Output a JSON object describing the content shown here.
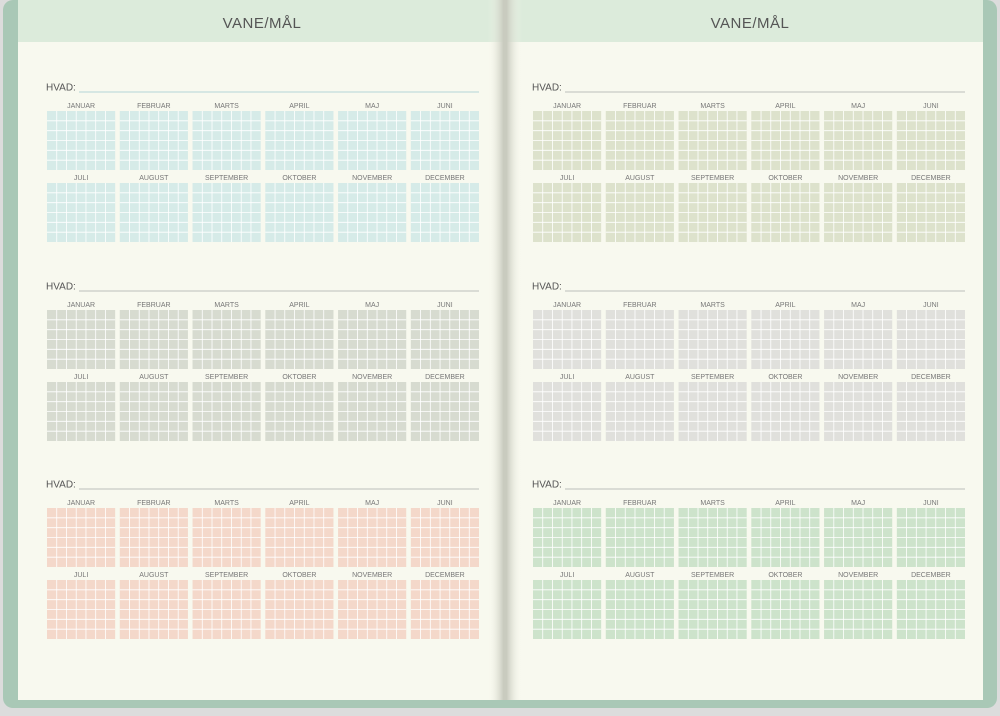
{
  "pages": [
    {
      "title": "VANE/MÅL",
      "sections": [
        {
          "label": "HVAD:",
          "color": "#d6ebe8"
        },
        {
          "label": "HVAD:",
          "color": "#d7dbd0"
        },
        {
          "label": "HVAD:",
          "color": "#f4d8ca"
        }
      ]
    },
    {
      "title": "VANE/MÅL",
      "sections": [
        {
          "label": "HVAD:",
          "color": "#dde2cc"
        },
        {
          "label": "HVAD:",
          "color": "#e0e0dc"
        },
        {
          "label": "HVAD:",
          "color": "#cde3cb"
        }
      ]
    }
  ],
  "months": [
    "JANUAR",
    "FEBRUAR",
    "MARTS",
    "APRIL",
    "MAJ",
    "JUNI",
    "JULI",
    "AUGUST",
    "SEPTEMBER",
    "OKTOBER",
    "NOVEMBER",
    "DECEMBER"
  ]
}
